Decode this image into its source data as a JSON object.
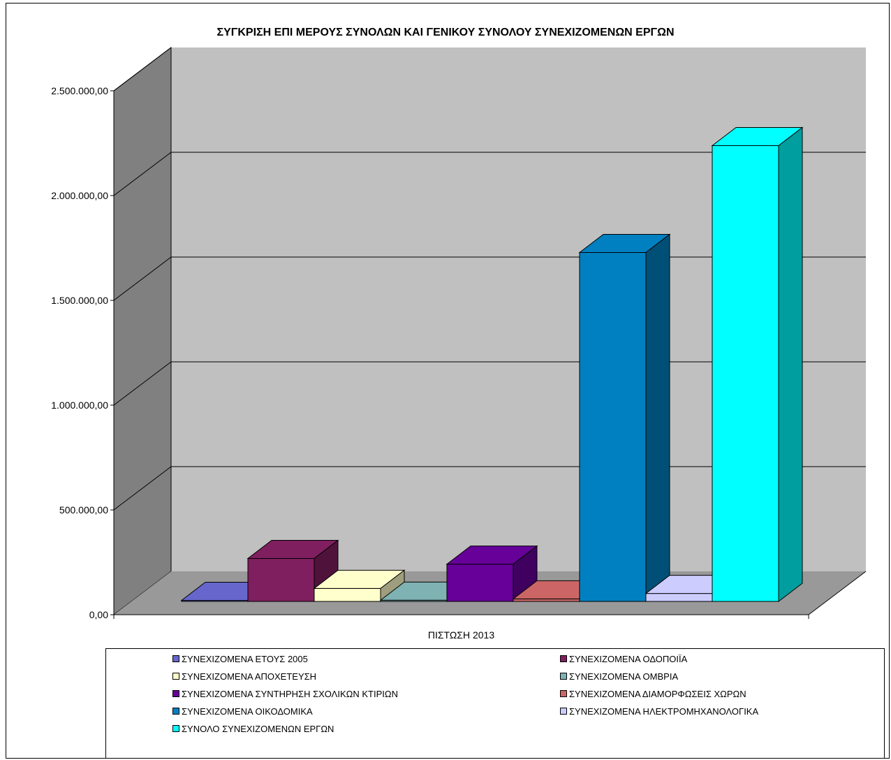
{
  "chart_data": {
    "type": "bar",
    "title": "ΣΥΓΚΡΙΣΗ ΕΠΙ ΜΕΡΟΥΣ ΣΥΝΟΛΩΝ ΚΑΙ ΓΕΝΙΚΟΥ ΣΥΝΟΛΟΥ ΣΥΝΕΧΙΖΟΜΕΝΩΝ ΕΡΓΩΝ",
    "categories": [
      "ΠΙΣΤΩΣΗ 2013"
    ],
    "ylim": [
      0,
      2500000
    ],
    "yticks": [
      0,
      500000,
      1000000,
      1500000,
      2000000,
      2500000
    ],
    "ytick_labels": [
      "0,00",
      "500.000,00",
      "1.000.000,00",
      "1.500.000,00",
      "2.000.000,00",
      "2.500.000,00"
    ],
    "grid": true,
    "legend_position": "bottom",
    "series": [
      {
        "name": "ΣΥΝΕΧΙΖΟΜΕΝΑ ΕΤΟΥΣ 2005",
        "values": [
          5000
        ],
        "color": "#6666cc"
      },
      {
        "name": "ΣΥΝΕΧΙΖΟΜΕΝΑ ΟΔΟΠΟΙΪΑ",
        "values": [
          205000
        ],
        "color": "#7f1f5f"
      },
      {
        "name": "ΣΥΝΕΧΙΖΟΜΕΝΑ ΑΠΟΧΕΤΕΥΣΗ",
        "values": [
          62000
        ],
        "color": "#ffffcc"
      },
      {
        "name": "ΣΥΝΕΧΙΖΟΜΕΝΑ ΟΜΒΡΙΑ",
        "values": [
          6000
        ],
        "color": "#7fb2b2"
      },
      {
        "name": "ΣΥΝΕΧΙΖΟΜΕΝΑ ΣΥΝΤΗΡΗΣΗ ΣΧΟΛΙΚΩΝ ΚΤΙΡΙΩΝ",
        "values": [
          178000
        ],
        "color": "#660099"
      },
      {
        "name": "ΣΥΝΕΧΙΖΟΜΕΝΑ ΔΙΑΜΟΡΦΩΣΕΙΣ ΧΩΡΩΝ",
        "values": [
          12000
        ],
        "color": "#cc6666"
      },
      {
        "name": "ΣΥΝΕΧΙΖΟΜΕΝΑ ΟΙΚΟΔΟΜΙΚΑ",
        "values": [
          1665000
        ],
        "color": "#0080c0"
      },
      {
        "name": "ΣΥΝΕΧΙΖΟΜΕΝΑ ΗΛΕΚΤΡΟΜΗΧΑΝΟΛΟΓΙΚΑ",
        "values": [
          38000
        ],
        "color": "#ccccff"
      },
      {
        "name": "ΣΥΝΟΛΟ ΣΥΝΕΧΙΖΟΜΕΝΩΝ ΕΡΓΩΝ",
        "values": [
          2175000
        ],
        "color": "#00ffff"
      }
    ]
  },
  "colors": {
    "back_wall": "#c0c0c0",
    "side_wall": "#808080",
    "floor": "#999999"
  }
}
